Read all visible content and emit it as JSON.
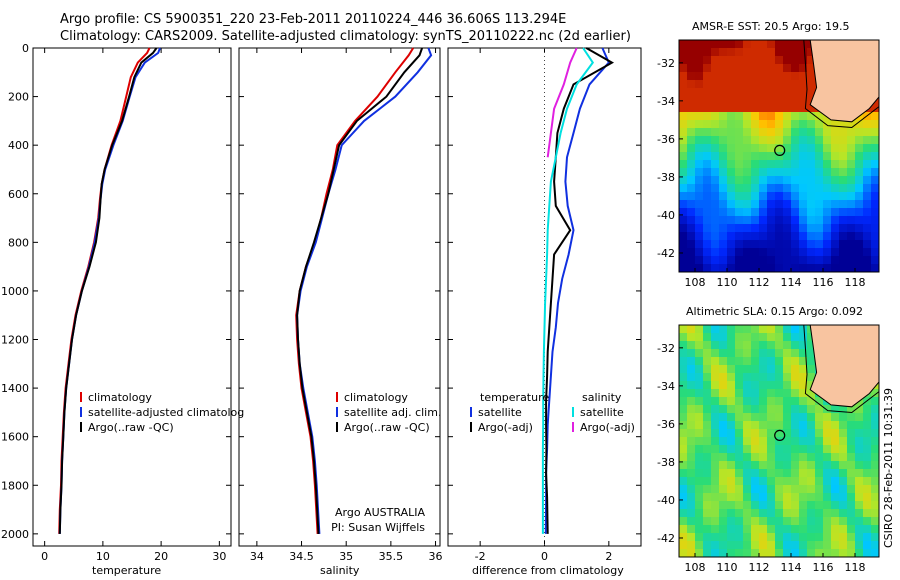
{
  "header": {
    "line1": "Argo profile: CS 5900351_220 23-Feb-2011 20110224_446 36.606S 113.294E",
    "line2": "Climatology: CARS2009. Satellite-adjusted climatology: synTS_20110222.nc (2d earlier)"
  },
  "side_label": "CSIRO 28-Feb-2011 10:31:39",
  "colors": {
    "climatology": "#dd0000",
    "satellite": "#1030e0",
    "argo": "#000000",
    "salinity_sat": "#00e0e0",
    "salinity_argo": "#e020e0",
    "land": "#f8c4a0"
  },
  "chart_data": [
    {
      "type": "line",
      "xlabel": "temperature",
      "ylabel": "",
      "xlim": [
        -2,
        32
      ],
      "ylim": [
        0,
        2050
      ],
      "y_inverted": true,
      "xticks": [
        0,
        10,
        20,
        30
      ],
      "yticks": [
        0,
        200,
        400,
        600,
        800,
        1000,
        1200,
        1400,
        1600,
        1800,
        2000
      ],
      "legend": [
        "climatology",
        "satellite-adjusted climatolog",
        "Argo(..raw -QC)"
      ],
      "series": [
        {
          "name": "climatology",
          "color": "#dd0000",
          "x": [
            18.0,
            17.6,
            16.0,
            14.8,
            14.0,
            13.0,
            11.5,
            10.3,
            9.8,
            9.5,
            9.2,
            8.5,
            7.5,
            6.3,
            5.3,
            4.6,
            4.1,
            3.6,
            3.3,
            3.1,
            2.9,
            2.8,
            2.6,
            2.5
          ],
          "y": [
            0,
            20,
            60,
            120,
            200,
            300,
            400,
            500,
            560,
            620,
            700,
            800,
            900,
            1000,
            1100,
            1200,
            1300,
            1400,
            1500,
            1600,
            1700,
            1800,
            1900,
            2000
          ]
        },
        {
          "name": "satellite-adjusted climatolog",
          "color": "#1030e0",
          "x": [
            19.8,
            19.5,
            17.2,
            15.6,
            14.6,
            13.4,
            11.8,
            10.4,
            9.9,
            9.6,
            9.3,
            8.6,
            7.6,
            6.4,
            5.4,
            4.7,
            4.2,
            3.7,
            3.4,
            3.2,
            3.0,
            2.9,
            2.7,
            2.6
          ],
          "y": [
            0,
            20,
            60,
            120,
            200,
            300,
            400,
            500,
            560,
            620,
            700,
            800,
            900,
            1000,
            1100,
            1200,
            1300,
            1400,
            1500,
            1600,
            1700,
            1800,
            1900,
            2000
          ]
        },
        {
          "name": "Argo(..raw -QC)",
          "color": "#000000",
          "x": [
            19.2,
            18.6,
            16.6,
            15.4,
            14.5,
            13.3,
            11.6,
            10.3,
            9.8,
            9.6,
            9.4,
            8.8,
            7.7,
            6.4,
            5.4,
            4.7,
            4.2,
            3.7,
            3.4,
            3.2,
            3.0,
            2.9,
            2.7,
            2.6
          ],
          "y": [
            0,
            20,
            60,
            120,
            200,
            300,
            400,
            500,
            560,
            620,
            700,
            800,
            900,
            1000,
            1100,
            1200,
            1300,
            1400,
            1500,
            1600,
            1700,
            1800,
            1900,
            2000
          ]
        }
      ]
    },
    {
      "type": "line",
      "xlabel": "salinity",
      "ylabel": "",
      "xlim": [
        33.8,
        36.05
      ],
      "ylim": [
        0,
        2050
      ],
      "y_inverted": true,
      "xticks": [
        34,
        34.5,
        35,
        35.5,
        36
      ],
      "legend": [
        "climatology",
        "satellite adj. clim.",
        "Argo(..raw -QC)"
      ],
      "annotation": [
        "Argo AUSTRALIA",
        "PI: Susan Wijffels"
      ],
      "series": [
        {
          "name": "climatology",
          "color": "#dd0000",
          "x": [
            35.75,
            35.7,
            35.55,
            35.35,
            35.1,
            34.9,
            34.85,
            34.78,
            34.72,
            34.65,
            34.55,
            34.48,
            34.44,
            34.45,
            34.47,
            34.5,
            34.55,
            34.6,
            34.63,
            34.65,
            34.68
          ],
          "y": [
            0,
            30,
            100,
            200,
            300,
            400,
            500,
            600,
            700,
            800,
            900,
            1000,
            1100,
            1200,
            1300,
            1400,
            1500,
            1600,
            1700,
            1800,
            2000
          ]
        },
        {
          "name": "satellite adj. clim.",
          "color": "#1030e0",
          "x": [
            35.92,
            35.95,
            35.8,
            35.55,
            35.2,
            34.95,
            34.88,
            34.8,
            34.73,
            34.66,
            34.56,
            34.49,
            34.45,
            34.46,
            34.48,
            34.52,
            34.57,
            34.62,
            34.65,
            34.67,
            34.7
          ],
          "y": [
            0,
            30,
            100,
            200,
            300,
            400,
            500,
            600,
            700,
            800,
            900,
            1000,
            1100,
            1200,
            1300,
            1400,
            1500,
            1600,
            1700,
            1800,
            2000
          ]
        },
        {
          "name": "Argo(..raw -QC)",
          "color": "#000000",
          "x": [
            35.85,
            35.82,
            35.65,
            35.45,
            35.12,
            34.92,
            34.86,
            34.8,
            34.72,
            34.64,
            34.55,
            34.48,
            34.45,
            34.46,
            34.48,
            34.51,
            34.56,
            34.61,
            34.64,
            34.66,
            34.69
          ],
          "y": [
            0,
            30,
            100,
            200,
            300,
            400,
            500,
            600,
            700,
            800,
            900,
            1000,
            1100,
            1200,
            1300,
            1400,
            1500,
            1600,
            1700,
            1800,
            2000
          ]
        }
      ]
    },
    {
      "type": "line",
      "xlabel": "difference from climatology",
      "ylabel": "",
      "xlim": [
        -3,
        3
      ],
      "ylim": [
        0,
        2050
      ],
      "y_inverted": true,
      "xticks": [
        -2,
        0,
        2
      ],
      "legend_left_title": "temperature",
      "legend_right_title": "salinity",
      "legend": [
        "satellite",
        "Argo(-adj)",
        "satellite",
        "Argo(-adj)"
      ],
      "series": [
        {
          "name": "satellite",
          "group": "temperature",
          "color": "#1030e0",
          "x": [
            1.8,
            2.0,
            1.4,
            1.1,
            0.9,
            0.7,
            0.65,
            0.72,
            0.9,
            0.75,
            0.55,
            0.42,
            0.35,
            0.25,
            0.2,
            0.15,
            0.1,
            0.08,
            0.05,
            0.05,
            0.04
          ],
          "y": [
            0,
            60,
            150,
            250,
            350,
            450,
            550,
            650,
            750,
            850,
            950,
            1050,
            1150,
            1250,
            1350,
            1450,
            1550,
            1650,
            1750,
            1850,
            2000
          ]
        },
        {
          "name": "Argo(-adj)",
          "group": "temperature",
          "color": "#000000",
          "x": [
            1.3,
            2.1,
            0.9,
            0.6,
            0.4,
            0.35,
            0.3,
            0.35,
            0.8,
            0.3,
            0.25,
            0.2,
            0.15,
            0.1,
            0.08,
            0.05,
            0.05,
            0.06,
            0.05,
            0.08,
            0.1
          ],
          "y": [
            0,
            60,
            150,
            250,
            350,
            450,
            550,
            650,
            750,
            850,
            950,
            1050,
            1150,
            1250,
            1350,
            1450,
            1550,
            1650,
            1750,
            1850,
            2000
          ]
        },
        {
          "name": "satellite",
          "group": "salinity",
          "color": "#00e0e0",
          "x": [
            1.2,
            1.5,
            1.0,
            0.7,
            0.5,
            0.35,
            0.2,
            0.15,
            0.1,
            0.08,
            0.05,
            0.02,
            0.0,
            -0.02,
            -0.03,
            -0.04,
            -0.04,
            -0.05,
            -0.05,
            -0.05,
            -0.05
          ],
          "y": [
            0,
            60,
            150,
            250,
            350,
            450,
            550,
            650,
            750,
            850,
            950,
            1050,
            1150,
            1250,
            1350,
            1450,
            1550,
            1650,
            1750,
            1850,
            2000
          ]
        },
        {
          "name": "Argo(-adj)",
          "group": "salinity",
          "color": "#e020e0",
          "x": [
            1.0,
            0.8,
            0.6,
            0.3,
            0.2,
            0.1
          ],
          "y": [
            0,
            60,
            150,
            250,
            350,
            450
          ]
        }
      ]
    },
    {
      "type": "heatmap",
      "title": "AMSR-E SST: 20.5 Argo: 19.5",
      "xticks": [
        108,
        110,
        112,
        114,
        116,
        118
      ],
      "yticks": [
        -32,
        -34,
        -36,
        -38,
        -40,
        -42
      ],
      "xlim": [
        107,
        119.5
      ],
      "ylim": [
        -43,
        -30.8
      ],
      "float_position": [
        113.294,
        -36.606
      ]
    },
    {
      "type": "heatmap",
      "title": "Altimetric SLA: 0.15 Argo: 0.092",
      "xticks": [
        108,
        110,
        112,
        114,
        116,
        118
      ],
      "yticks": [
        -32,
        -34,
        -36,
        -38,
        -40,
        -42
      ],
      "xlim": [
        107,
        119.5
      ],
      "ylim": [
        -43,
        -30.8
      ],
      "float_position": [
        113.294,
        -36.606
      ]
    }
  ]
}
